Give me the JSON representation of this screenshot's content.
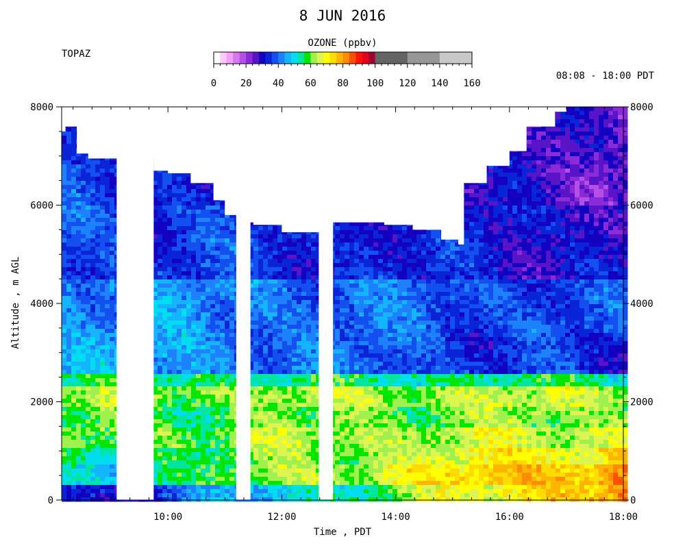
{
  "chart_data": {
    "type": "heatmap",
    "title": "8 JUN 2016",
    "site": "TOPAZ",
    "time_range": "08:08 - 18:00 PDT",
    "xlabel": "Time , PDT",
    "ylabel": "Altitude , m AGL",
    "colorbar": {
      "title": "OZONE (ppbv)",
      "tick_labels": [
        "0",
        "20",
        "40",
        "60",
        "80",
        "100",
        "120",
        "140",
        "160"
      ],
      "ticks": [
        0,
        20,
        40,
        60,
        80,
        100,
        120,
        140,
        160
      ],
      "bins": [
        {
          "from": 0,
          "to": 4,
          "color": "#ffffff"
        },
        {
          "from": 4,
          "to": 8,
          "color": "#ffc8ff"
        },
        {
          "from": 8,
          "to": 12,
          "color": "#f0a0f8"
        },
        {
          "from": 12,
          "to": 16,
          "color": "#d878f0"
        },
        {
          "from": 16,
          "to": 20,
          "color": "#b450e6"
        },
        {
          "from": 20,
          "to": 24,
          "color": "#8a2ad8"
        },
        {
          "from": 24,
          "to": 28,
          "color": "#5a14c8"
        },
        {
          "from": 28,
          "to": 32,
          "color": "#1400c0"
        },
        {
          "from": 32,
          "to": 36,
          "color": "#0a24d8"
        },
        {
          "from": 36,
          "to": 40,
          "color": "#1450f0"
        },
        {
          "from": 40,
          "to": 44,
          "color": "#1e82ff"
        },
        {
          "from": 44,
          "to": 48,
          "color": "#14b4ff"
        },
        {
          "from": 48,
          "to": 52,
          "color": "#00dcf0"
        },
        {
          "from": 52,
          "to": 56,
          "color": "#00e6a0"
        },
        {
          "from": 56,
          "to": 60,
          "color": "#00e600"
        },
        {
          "from": 60,
          "to": 64,
          "color": "#a0f050"
        },
        {
          "from": 64,
          "to": 68,
          "color": "#dcf550"
        },
        {
          "from": 68,
          "to": 72,
          "color": "#ffff00"
        },
        {
          "from": 72,
          "to": 76,
          "color": "#ffdc00"
        },
        {
          "from": 76,
          "to": 80,
          "color": "#ffb400"
        },
        {
          "from": 80,
          "to": 84,
          "color": "#ff8c00"
        },
        {
          "from": 84,
          "to": 88,
          "color": "#ff5000"
        },
        {
          "from": 88,
          "to": 92,
          "color": "#ff1400"
        },
        {
          "from": 92,
          "to": 96,
          "color": "#e6001e"
        },
        {
          "from": 96,
          "to": 100,
          "color": "#a00032"
        },
        {
          "from": 100,
          "to": 120,
          "color": "#646464"
        },
        {
          "from": 120,
          "to": 140,
          "color": "#969696"
        },
        {
          "from": 140,
          "to": 160,
          "color": "#c8c8c8"
        }
      ]
    },
    "x_axis": {
      "range_hours": [
        8.1333,
        18.0
      ],
      "ticks": [
        10,
        12,
        14,
        16,
        18
      ],
      "tick_labels": [
        "10:00",
        "12:00",
        "14:00",
        "16:00",
        "18:00"
      ]
    },
    "y_axis": {
      "range": [
        0,
        8000
      ],
      "ticks": [
        0,
        2000,
        4000,
        6000,
        8000
      ],
      "tick_labels": [
        "0",
        "2000",
        "4000",
        "6000",
        "8000"
      ]
    },
    "data_gaps_hours": [
      [
        9.1,
        9.75
      ],
      [
        11.2,
        11.45
      ],
      [
        12.65,
        12.9
      ]
    ],
    "layers": [
      {
        "alt_from": 0,
        "alt_to": 300,
        "ozone_early": 28,
        "ozone_late": 82
      },
      {
        "alt_from": 300,
        "alt_to": 700,
        "ozone_early": 48,
        "ozone_late": 82
      },
      {
        "alt_from": 700,
        "alt_to": 1100,
        "ozone_early": 52,
        "ozone_late": 74
      },
      {
        "alt_from": 1100,
        "alt_to": 1500,
        "ozone_early": 60,
        "ozone_late": 66
      },
      {
        "alt_from": 1500,
        "alt_to": 1900,
        "ozone_early": 58,
        "ozone_late": 62
      },
      {
        "alt_from": 1900,
        "alt_to": 2350,
        "ozone_early": 62,
        "ozone_late": 64
      },
      {
        "alt_from": 2350,
        "alt_to": 2600,
        "ozone_early": 56,
        "ozone_late": 54
      },
      {
        "alt_from": 2600,
        "alt_to": 3400,
        "ozone_early": 46,
        "ozone_late": 33
      },
      {
        "alt_from": 3400,
        "alt_to": 4500,
        "ozone_early": 44,
        "ozone_late": 36
      },
      {
        "alt_from": 4500,
        "alt_to": 6000,
        "ozone_early": 38,
        "ozone_late": 30
      },
      {
        "alt_from": 6000,
        "alt_to": 8000,
        "ozone_early": 36,
        "ozone_late": 26
      }
    ],
    "top_altitude_profile": [
      [
        8.13,
        7500
      ],
      [
        8.2,
        7600
      ],
      [
        8.4,
        7050
      ],
      [
        8.6,
        6950
      ],
      [
        9.0,
        6950
      ],
      [
        9.75,
        6700
      ],
      [
        10.0,
        6650
      ],
      [
        10.4,
        6450
      ],
      [
        10.8,
        6100
      ],
      [
        11.0,
        5800
      ],
      [
        11.2,
        5650
      ],
      [
        11.5,
        5600
      ],
      [
        12.0,
        5450
      ],
      [
        12.5,
        5450
      ],
      [
        12.9,
        5650
      ],
      [
        13.3,
        5650
      ],
      [
        13.8,
        5600
      ],
      [
        14.3,
        5500
      ],
      [
        14.8,
        5300
      ],
      [
        15.1,
        5200
      ],
      [
        15.2,
        6450
      ],
      [
        15.6,
        6800
      ],
      [
        16.0,
        7100
      ],
      [
        16.3,
        7600
      ],
      [
        16.8,
        7900
      ],
      [
        17.0,
        8000
      ],
      [
        18.0,
        8000
      ]
    ]
  }
}
